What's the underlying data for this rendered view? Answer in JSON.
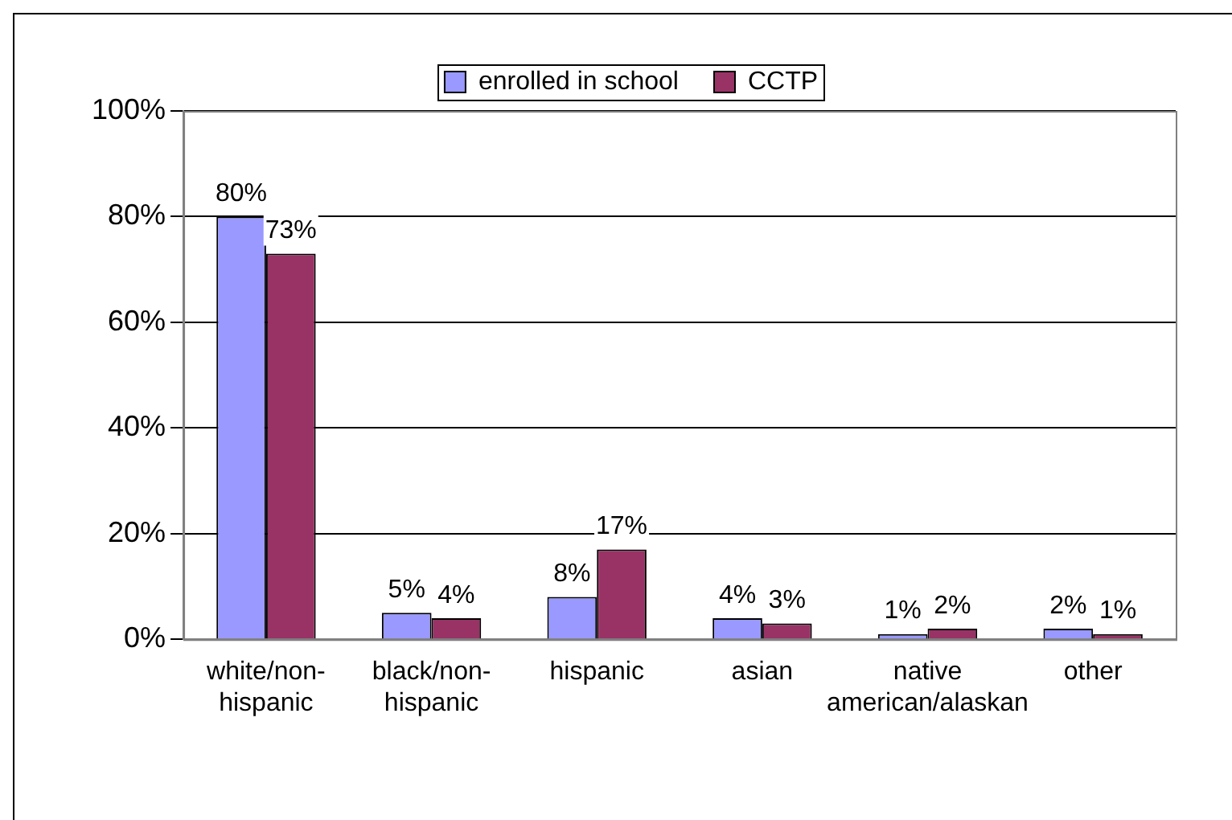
{
  "chart_data": {
    "type": "bar",
    "categories": [
      "white/non-hispanic",
      "black/non-hispanic",
      "hispanic",
      "asian",
      "native american/alaskan",
      "other"
    ],
    "series": [
      {
        "name": "enrolled in school",
        "color": "#9999ff",
        "values": [
          80,
          5,
          8,
          4,
          1,
          2
        ],
        "value_labels": [
          "80%",
          "5%",
          "8%",
          "4%",
          "1%",
          "2%"
        ]
      },
      {
        "name": "CCTP",
        "color": "#993366",
        "values": [
          73,
          4,
          17,
          3,
          2,
          1
        ],
        "value_labels": [
          "73%",
          "4%",
          "17%",
          "3%",
          "2%",
          "1%"
        ]
      }
    ],
    "ylim": [
      0,
      100
    ],
    "yticks": [
      {
        "value": 0,
        "label": "0%"
      },
      {
        "value": 20,
        "label": "20%"
      },
      {
        "value": 40,
        "label": "40%"
      },
      {
        "value": 60,
        "label": "60%"
      },
      {
        "value": 80,
        "label": "80%"
      },
      {
        "value": 100,
        "label": "100%"
      }
    ],
    "grid": "y",
    "legend": "top"
  }
}
